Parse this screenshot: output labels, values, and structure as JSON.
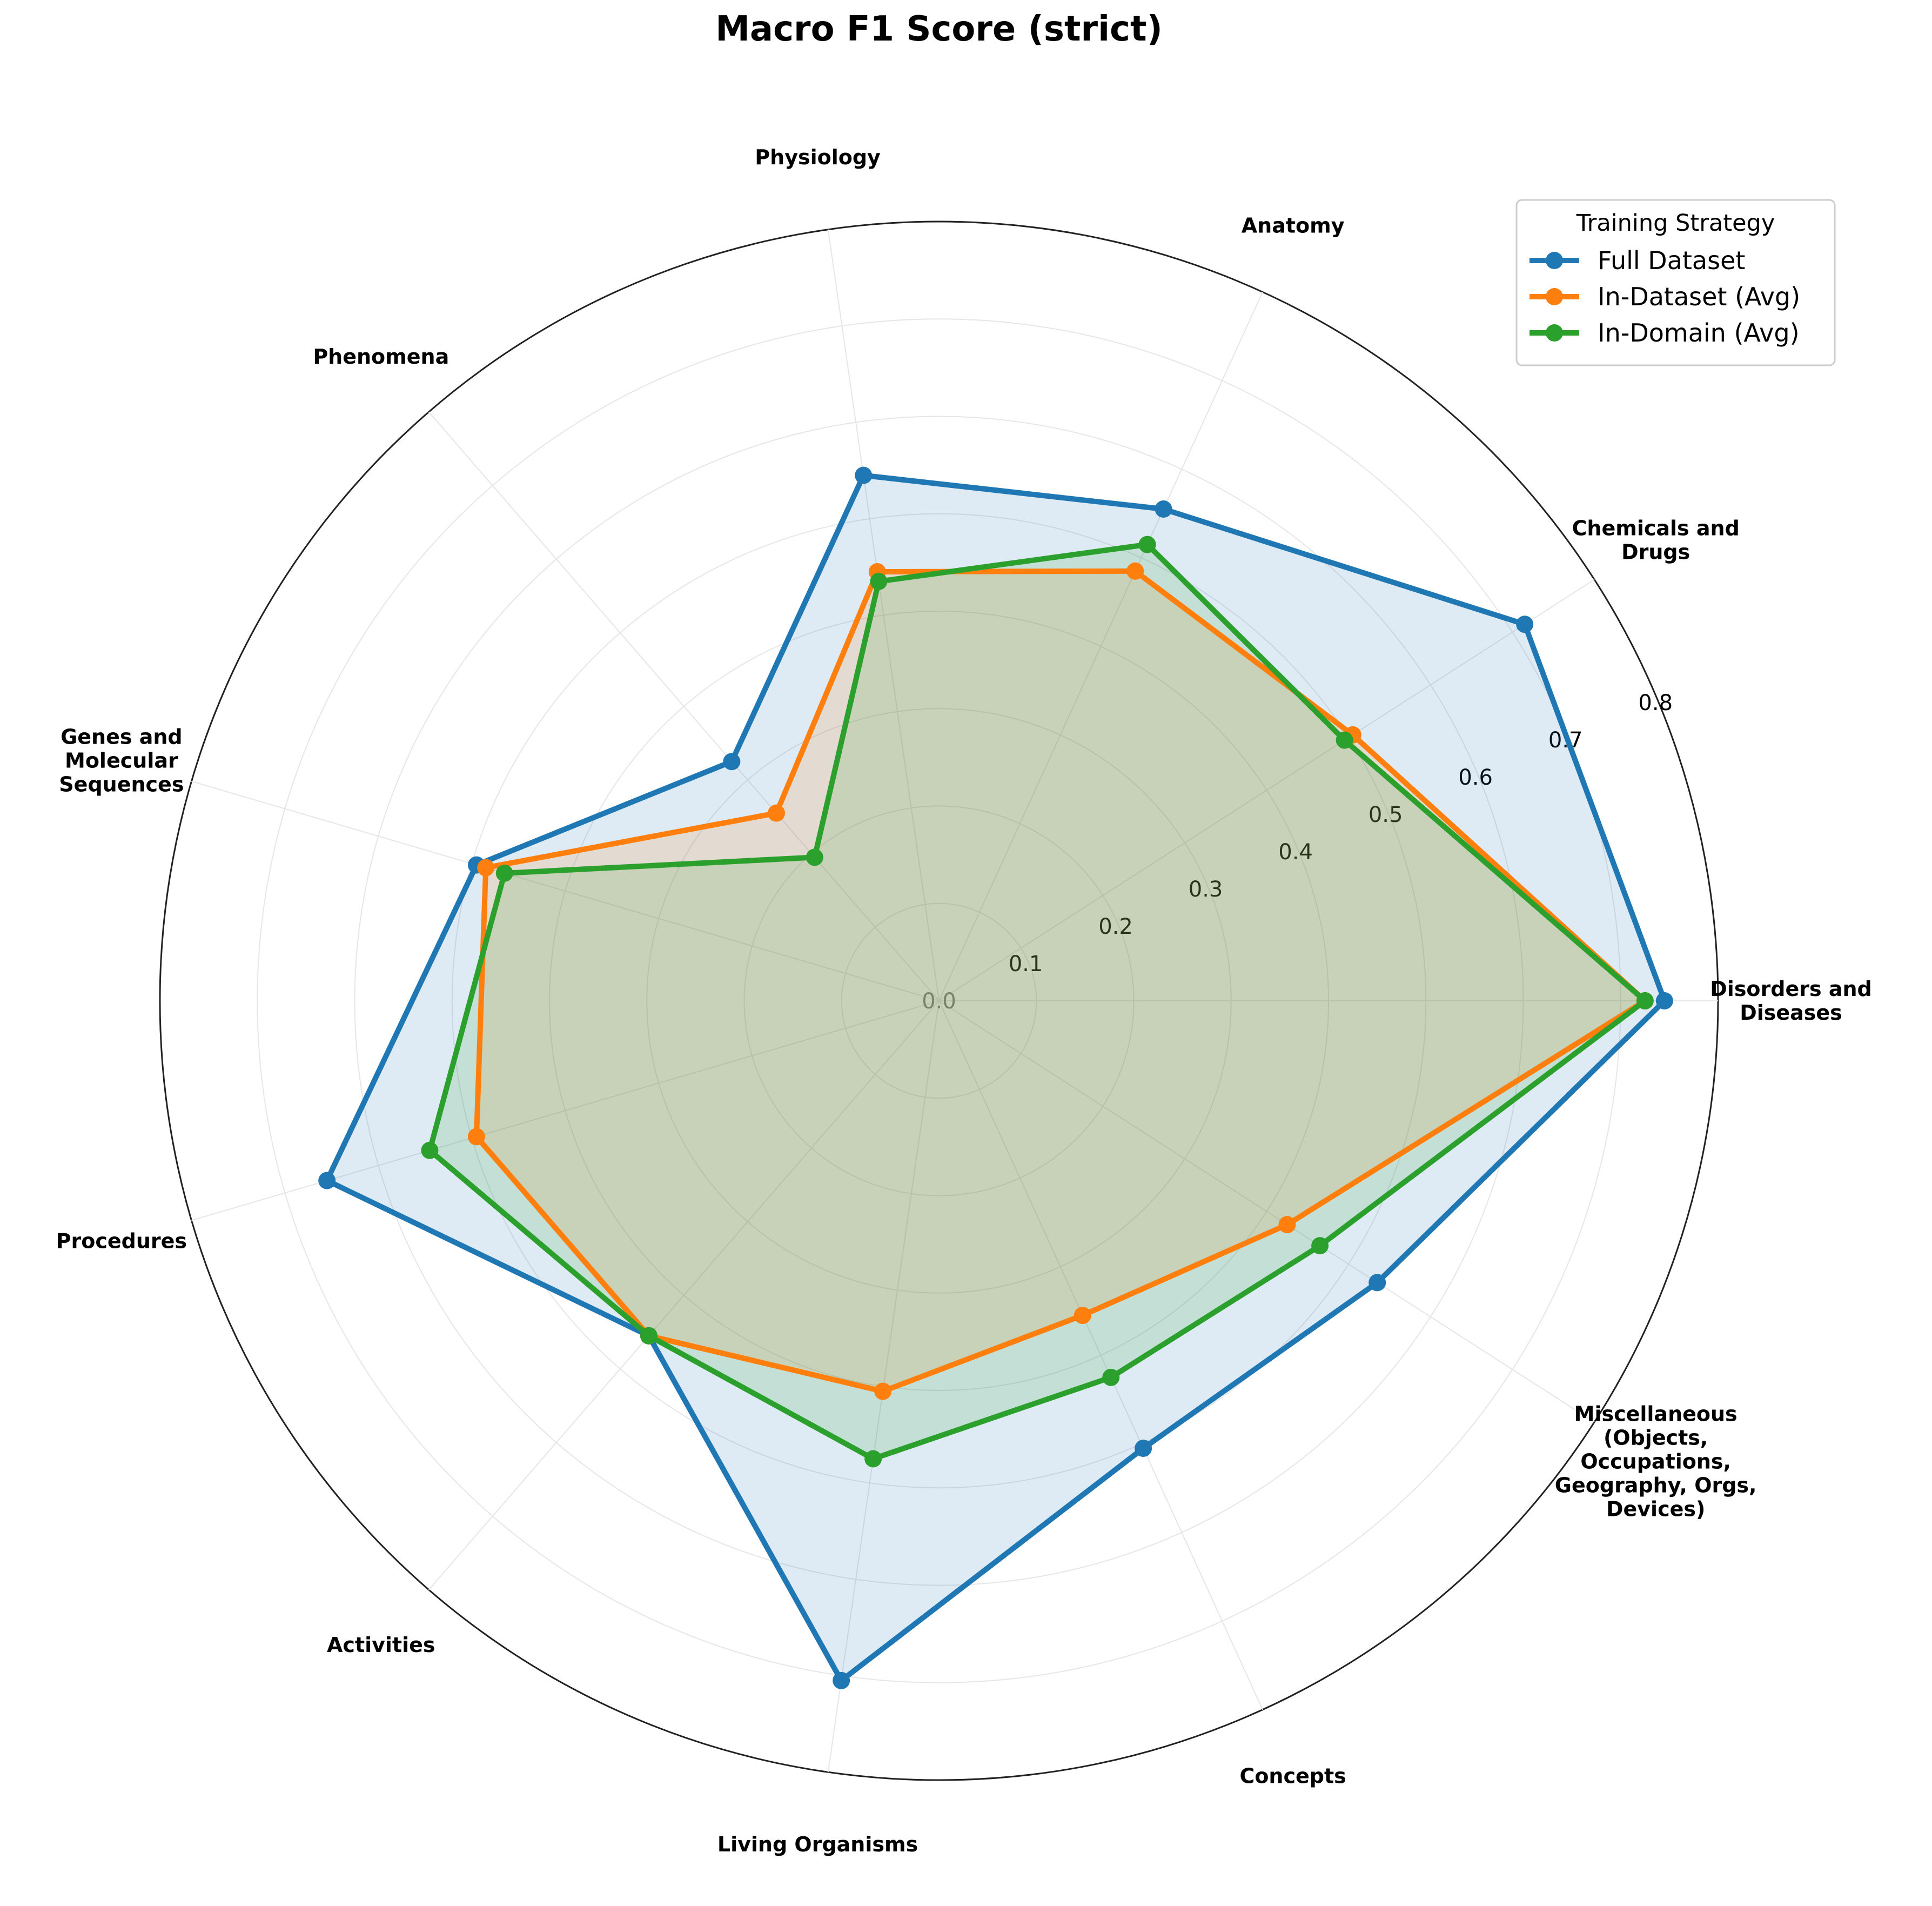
{
  "chart_data": {
    "type": "radar",
    "title": "Macro F1 Score (strict)",
    "categories": [
      "Disorders and\nDiseases",
      "Chemicals and\nDrugs",
      "Anatomy",
      "Physiology",
      "Phenomena",
      "Genes and\nMolecular\nSequences",
      "Procedures",
      "Activities",
      "Living Organisms",
      "Concepts",
      "Miscellaneous\n(Objects,\nOccupations,\nGeography, Orgs,\nDevices)"
    ],
    "r_ticks": [
      "0.0",
      "0.1",
      "0.2",
      "0.3",
      "0.4",
      "0.5",
      "0.6",
      "0.7",
      "0.8"
    ],
    "rlim": [
      0,
      0.8
    ],
    "grid": true,
    "legend": {
      "title": "Training Strategy",
      "placement": "top-right"
    },
    "series": [
      {
        "name": "Full Dataset",
        "color": "#1f77b4",
        "fill_opacity": 0.15,
        "values": [
          0.745,
          0.715,
          0.555,
          0.545,
          0.325,
          0.495,
          0.655,
          0.455,
          0.705,
          0.505,
          0.535
        ]
      },
      {
        "name": "In-Dataset (Avg)",
        "color": "#ff7f0e",
        "fill_opacity": 0.15,
        "values": [
          0.725,
          0.505,
          0.485,
          0.445,
          0.255,
          0.485,
          0.495,
          0.455,
          0.405,
          0.355,
          0.425
        ]
      },
      {
        "name": "In-Domain (Avg)",
        "color": "#2ca02c",
        "fill_opacity": 0.15,
        "values": [
          0.725,
          0.495,
          0.515,
          0.435,
          0.195,
          0.465,
          0.545,
          0.455,
          0.475,
          0.425,
          0.465
        ]
      }
    ]
  }
}
